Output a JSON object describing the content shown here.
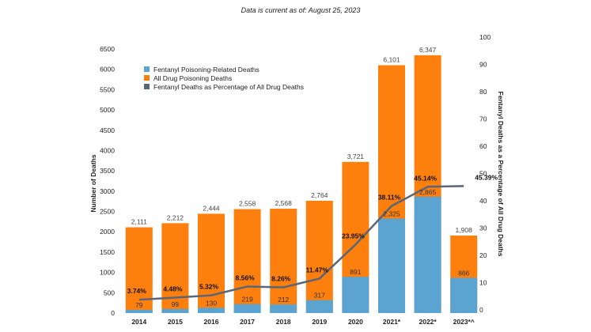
{
  "note": "Data is current as of:  August 25, 2023",
  "colors": {
    "all": "#fd7f0e",
    "fentanyl": "#5ba4d2",
    "line": "#5a6577"
  },
  "chart_data": {
    "type": "bar",
    "categories": [
      "2014",
      "2015",
      "2016",
      "2017",
      "2018",
      "2019",
      "2020",
      "2021*",
      "2022*",
      "2023*^"
    ],
    "series": [
      {
        "name": "Fentanyl Poisoning-Related Deaths",
        "type": "bar",
        "axis": "left",
        "values": [
          79,
          99,
          130,
          219,
          212,
          317,
          891,
          2325,
          2865,
          866
        ],
        "labels": [
          "79",
          "99",
          "130",
          "219",
          "212",
          "317",
          "891",
          "2,325",
          "2,865",
          "866"
        ]
      },
      {
        "name": "All Drug Poisoning Deaths",
        "type": "bar",
        "axis": "left",
        "values": [
          2111,
          2212,
          2444,
          2558,
          2568,
          2764,
          3721,
          6101,
          6347,
          1908
        ],
        "labels": [
          "2,111",
          "2,212",
          "2,444",
          "2,558",
          "2,568",
          "2,764",
          "3,721",
          "6,101",
          "6,347",
          "1,908"
        ]
      },
      {
        "name": "Fentanyl Deaths as Percentage of All Drug Deaths",
        "type": "line",
        "axis": "right",
        "values": [
          3.74,
          4.48,
          5.32,
          8.56,
          8.26,
          11.47,
          23.95,
          38.11,
          45.14,
          45.39
        ],
        "labels": [
          "3.74%",
          "4.48%",
          "5.32%",
          "8.56%",
          "8.26%",
          "11.47%",
          "23.95%",
          "38.11%",
          "45.14%",
          "45.39%"
        ]
      }
    ],
    "ylabel": "Number of Deaths",
    "ylim": [
      0,
      6500
    ],
    "yticks": [
      "0",
      "500",
      "1000",
      "1500",
      "2000",
      "2500",
      "3000",
      "3500",
      "4000",
      "4500",
      "5000",
      "5500",
      "6000",
      "6500"
    ],
    "y2label": "Fentanyl Deaths as a Percentage of All Drug Deaths",
    "y2lim": [
      0,
      100
    ],
    "y2ticks": [
      "0",
      "10",
      "20",
      "30",
      "40",
      "50",
      "60",
      "70",
      "80",
      "90",
      "100"
    ],
    "grid": false,
    "legend": "top-left"
  }
}
